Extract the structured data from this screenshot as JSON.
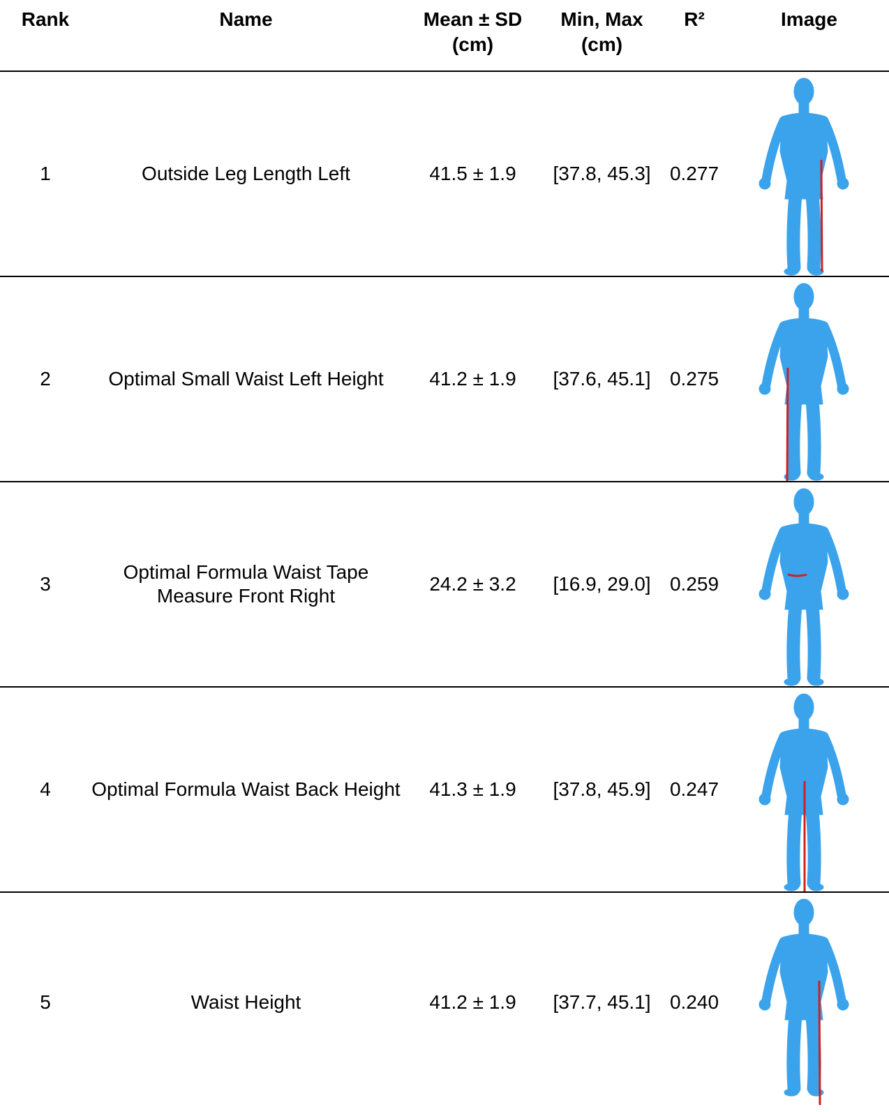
{
  "table": {
    "header": [
      "Rank",
      "Name",
      "Mean ± SD\n(cm)",
      "Min, Max\n(cm)",
      "R²",
      "Image"
    ],
    "rows": [
      [
        "1",
        "Outside Leg Length Left",
        "41.5 ± 1.9",
        "[37.8, 45.3]",
        "0.277"
      ],
      [
        "2",
        "Optimal Small Waist Left Height",
        "41.2 ± 1.9",
        "[37.6, 45.1]",
        "0.275"
      ],
      [
        "3",
        "Optimal Formula Waist Tape Measure Front Right",
        "24.2 ± 3.2",
        "[16.9, 29.0]",
        "0.259"
      ],
      [
        "4",
        "Optimal Formula Waist Back Height",
        "41.3 ± 1.9",
        "[37.8, 45.9]",
        "0.247"
      ],
      [
        "5",
        "Waist Height",
        "41.2 ± 1.9",
        "[37.7, 45.1]",
        "0.240"
      ]
    ]
  }
}
